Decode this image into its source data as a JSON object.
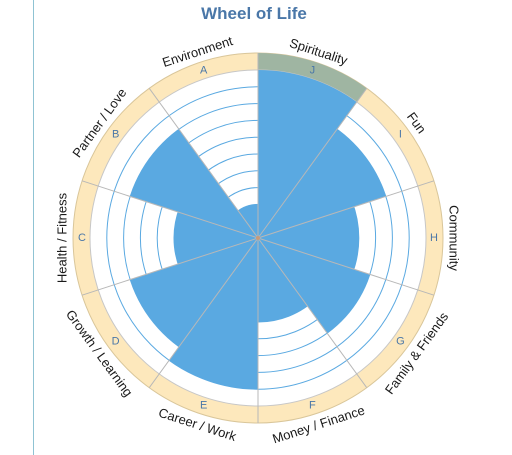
{
  "chart_data": {
    "type": "polar-area",
    "title": "Wheel of Life",
    "scale_max": 10,
    "rings": 10,
    "segments": [
      {
        "letter": "J",
        "label": "Spirituality",
        "value": 10,
        "highlighted": true
      },
      {
        "letter": "I",
        "label": "Fun",
        "value": 8,
        "highlighted": false
      },
      {
        "letter": "H",
        "label": "Community",
        "value": 6,
        "highlighted": false
      },
      {
        "letter": "G",
        "label": "Family & Friends",
        "value": 7,
        "highlighted": false
      },
      {
        "letter": "F",
        "label": "Money / Finance",
        "value": 5,
        "highlighted": false
      },
      {
        "letter": "E",
        "label": "Career / Work",
        "value": 9,
        "highlighted": false
      },
      {
        "letter": "D",
        "label": "Growth / Learning",
        "value": 8,
        "highlighted": false
      },
      {
        "letter": "C",
        "label": "Health / Fitness",
        "value": 5,
        "highlighted": false
      },
      {
        "letter": "B",
        "label": "Partner / Love",
        "value": 8,
        "highlighted": false
      },
      {
        "letter": "A",
        "label": "Environment",
        "value": 2,
        "highlighted": false
      }
    ]
  },
  "colors": {
    "fill": "#5aa9e1",
    "band": "#fde8bc",
    "band_highlight": "#9fb5a2",
    "rings": "#5aa9e1",
    "dividers": "#b8b8b8",
    "title": "#4a77a8",
    "letters": "#4a77a8"
  }
}
